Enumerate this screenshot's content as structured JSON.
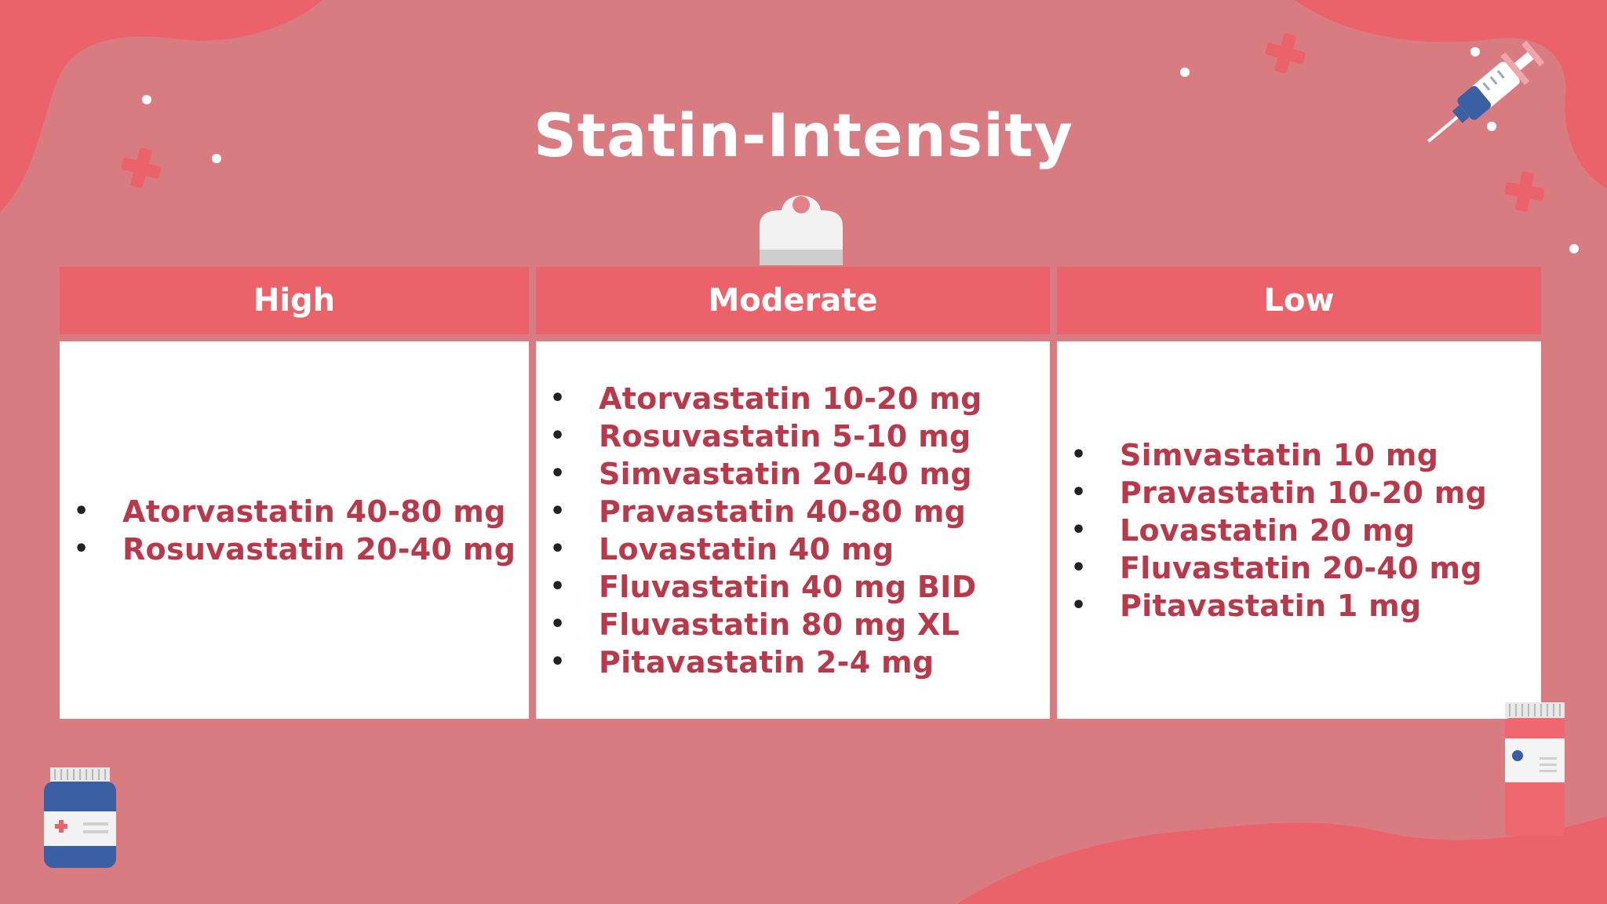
{
  "title": "Statin-Intensity",
  "columns": [
    {
      "header": "High",
      "items": [
        "Atorvastatin 40-80 mg",
        "Rosuvastatin 20-40 mg"
      ]
    },
    {
      "header": "Moderate",
      "items": [
        "Atorvastatin 10-20 mg",
        "Rosuvastatin 5-10 mg",
        "Simvastatin 20-40 mg",
        "Pravastatin 40-80 mg",
        "Lovastatin 40 mg",
        "Fluvastatin 40 mg BID",
        "Fluvastatin 80 mg XL",
        "Pitavastatin 2-4 mg"
      ]
    },
    {
      "header": "Low",
      "items": [
        "Simvastatin 10 mg",
        "Pravastatin 10-20 mg",
        "Lovastatin 20 mg",
        "Fluvastatin 20-40 mg",
        "Pitavastatin 1 mg"
      ]
    }
  ],
  "colors": {
    "background": "#d97c82",
    "accent": "#ec626a",
    "item_text": "#b8394a",
    "header_text": "#ffffff"
  },
  "icons": [
    "syringe-icon",
    "medicine-bottle-blue-icon",
    "medicine-bottle-red-icon",
    "clipboard-clip-icon",
    "medical-cross-icon"
  ]
}
